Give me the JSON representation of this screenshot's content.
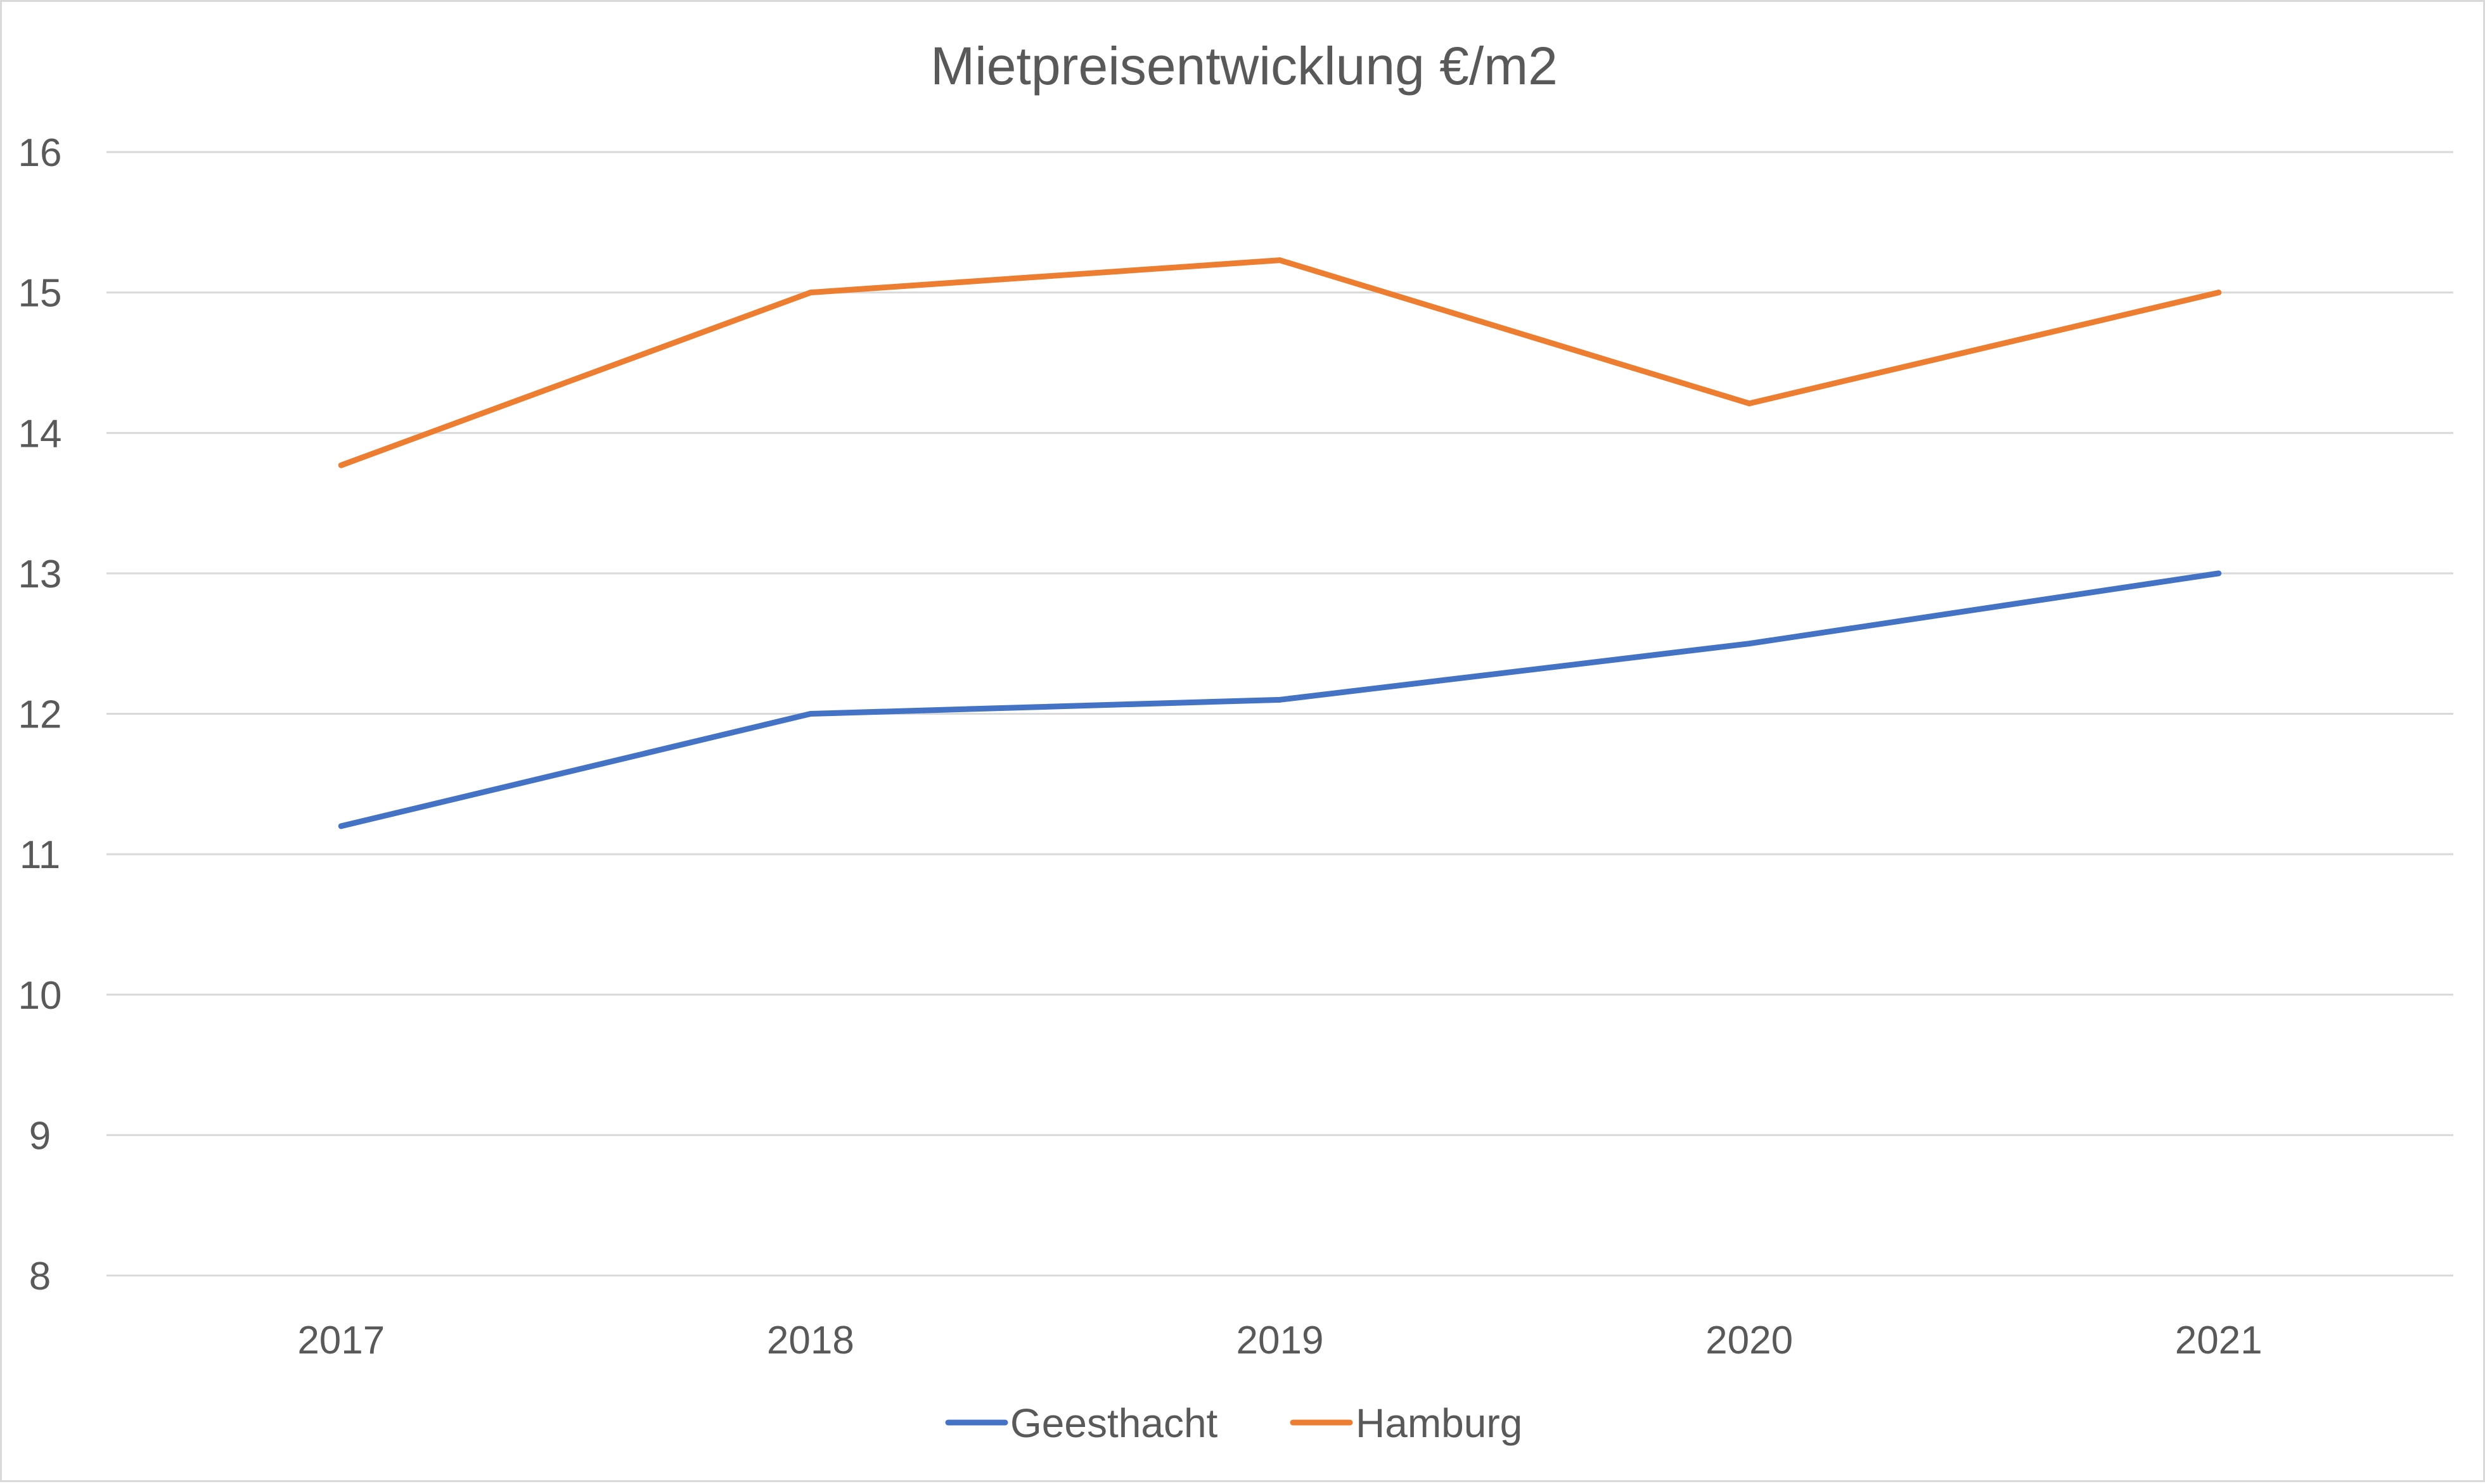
{
  "chart_data": {
    "type": "line",
    "title": "Mietpreisentwicklung  €/m2",
    "xlabel": "",
    "ylabel": "",
    "categories": [
      "2017",
      "2018",
      "2019",
      "2020",
      "2021"
    ],
    "series": [
      {
        "name": "Geesthacht",
        "color": "#4472c4",
        "values": [
          11.2,
          12.0,
          12.1,
          12.5,
          13.0
        ]
      },
      {
        "name": "Hamburg",
        "color": "#ed7d31",
        "values": [
          13.77,
          15.0,
          15.23,
          14.21,
          15.0
        ]
      }
    ],
    "ylim": [
      8,
      16
    ],
    "yticks": [
      "8",
      "9",
      "10",
      "11",
      "12",
      "13",
      "14",
      "15",
      "16"
    ],
    "grid": true,
    "legend_position": "bottom",
    "gridline_color": "#d9d9d9"
  }
}
